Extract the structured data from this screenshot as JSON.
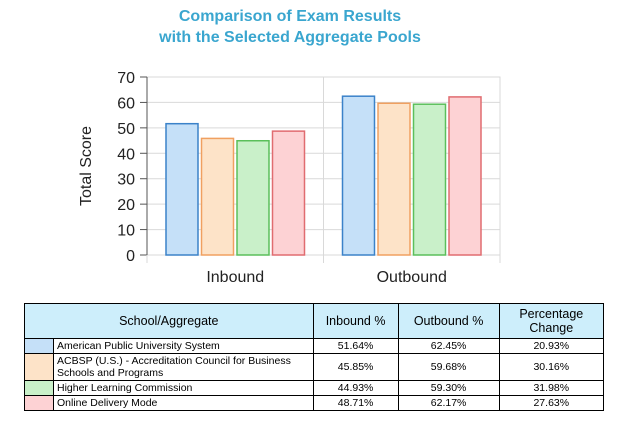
{
  "chart_data": {
    "type": "bar",
    "title": "Comparison of Exam Results\nwith the Selected Aggregate Pools",
    "ylabel": "Total Score",
    "xlabel": "",
    "ylim": [
      0,
      70
    ],
    "yticks": [
      0,
      10,
      20,
      30,
      40,
      50,
      60,
      70
    ],
    "grid": true,
    "categories": [
      "Inbound",
      "Outbound"
    ],
    "series": [
      {
        "name": "American Public University System",
        "values": [
          51.64,
          62.45
        ],
        "fill": "#c5e0f8",
        "stroke": "#3b82c9"
      },
      {
        "name": "ACBSP (U.S.) - Accreditation Council for Business Schools and Programs",
        "values": [
          45.85,
          59.68
        ],
        "fill": "#fde3c8",
        "stroke": "#f0a060"
      },
      {
        "name": "Higher Learning Commission",
        "values": [
          44.93,
          59.3
        ],
        "fill": "#c9f0c9",
        "stroke": "#5bbf5b"
      },
      {
        "name": "Online Delivery Mode",
        "values": [
          48.71,
          62.17
        ],
        "fill": "#fdd2d4",
        "stroke": "#e06c70"
      }
    ]
  },
  "table": {
    "headers": [
      "School/Aggregate",
      "Inbound %",
      "Outbound %",
      "Percentage Change"
    ],
    "rows": [
      {
        "name": "American Public University System",
        "inbound": "51.64%",
        "outbound": "62.45%",
        "change": "20.93%",
        "color": "#c5e0f8"
      },
      {
        "name": "ACBSP (U.S.) - Accreditation Council for Business Schools and Programs",
        "inbound": "45.85%",
        "outbound": "59.68%",
        "change": "30.16%",
        "color": "#fde3c8"
      },
      {
        "name": "Higher Learning Commission",
        "inbound": "44.93%",
        "outbound": "59.30%",
        "change": "31.98%",
        "color": "#c9f0c9"
      },
      {
        "name": "Online Delivery Mode",
        "inbound": "48.71%",
        "outbound": "62.17%",
        "change": "27.63%",
        "color": "#fdd2d4"
      }
    ]
  }
}
